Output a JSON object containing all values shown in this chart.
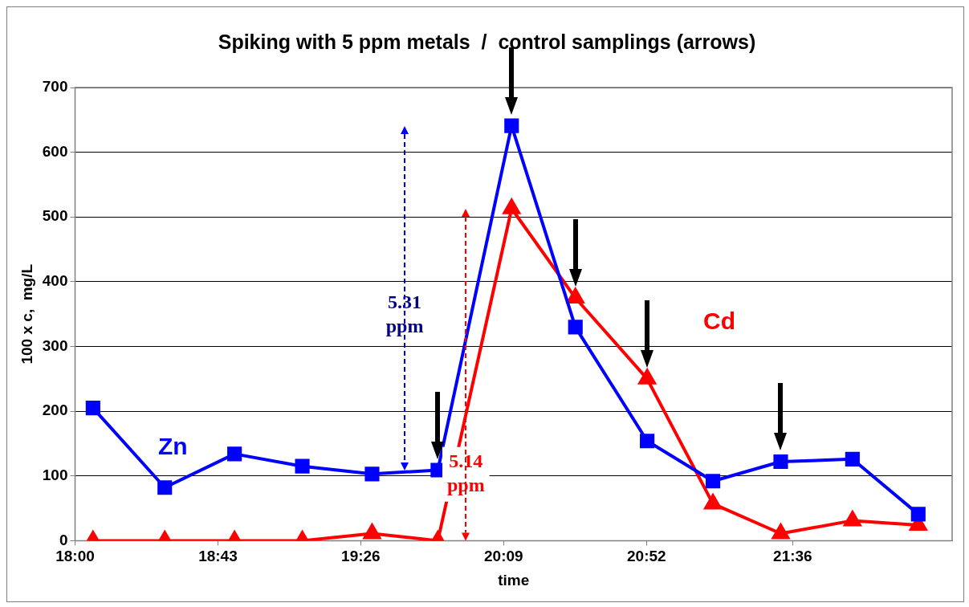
{
  "chart_data": {
    "type": "line",
    "title": "Spiking with 5 ppm metals  /  control samplings (arrows)",
    "xlabel": "time",
    "ylabel": "100 x c,  mg/L",
    "x": [
      18.09,
      18.45,
      18.8,
      19.14,
      19.49,
      19.82,
      20.19,
      20.51,
      20.87,
      21.2,
      21.54,
      21.9,
      22.23
    ],
    "series": [
      {
        "name": "Zn",
        "color": "#0000ff",
        "marker": "square",
        "values": [
          205,
          82,
          134,
          115,
          103,
          109,
          641,
          330,
          154,
          92,
          122,
          126,
          41
        ]
      },
      {
        "name": "Cd",
        "color": "#ff0000",
        "marker": "triangle",
        "values": [
          0,
          0,
          0,
          0,
          11,
          0,
          513,
          375,
          250,
          57,
          11,
          31,
          24
        ]
      }
    ],
    "xlim": [
      18,
      22.4
    ],
    "xticks": [
      {
        "value": 18,
        "label": "18:00"
      },
      {
        "value": 18.7167,
        "label": "18:43"
      },
      {
        "value": 19.4333,
        "label": "19:26"
      },
      {
        "value": 20.15,
        "label": "20:09"
      },
      {
        "value": 20.8667,
        "label": "20:52"
      },
      {
        "value": 21.6,
        "label": "21:36"
      }
    ],
    "ylim": [
      0,
      700
    ],
    "yticks": [
      0,
      100,
      200,
      300,
      400,
      500,
      600,
      700
    ],
    "grid": "y",
    "legend": false,
    "annotations": [
      "5.31 ppm",
      "5.14 ppm"
    ]
  }
}
